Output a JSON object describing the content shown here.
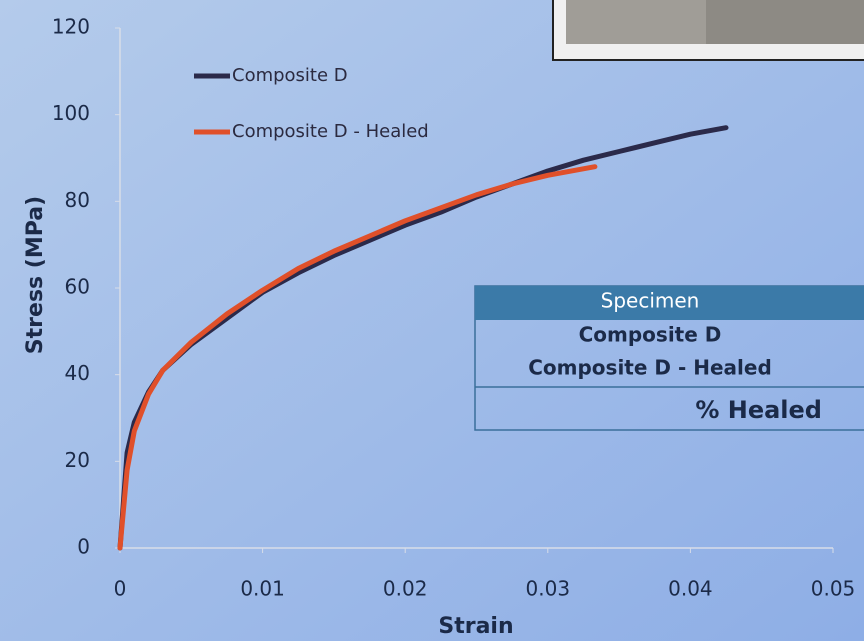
{
  "chart_data": {
    "type": "line",
    "xlabel": "Strain",
    "ylabel": "Stress (MPa)",
    "xlim": [
      0,
      0.05
    ],
    "xticks": [
      0,
      0.01,
      0.02,
      0.03,
      0.04,
      0.05
    ],
    "ylim": [
      0,
      120
    ],
    "yticks": [
      0,
      20,
      40,
      60,
      80,
      100,
      120
    ],
    "series": [
      {
        "name": "Composite D",
        "color": "#2b2a4a",
        "x": [
          0,
          0.0005,
          0.001,
          0.002,
          0.003,
          0.005,
          0.0075,
          0.01,
          0.0125,
          0.015,
          0.0175,
          0.02,
          0.0225,
          0.025,
          0.0275,
          0.03,
          0.0325,
          0.035,
          0.0375,
          0.04,
          0.0425
        ],
        "values": [
          0,
          22,
          29,
          36,
          41,
          47,
          53,
          59,
          63.5,
          67.5,
          71,
          74.5,
          77.5,
          81,
          84,
          87,
          89.5,
          91.5,
          93.5,
          95.5,
          97
        ]
      },
      {
        "name": "Composite D - Healed",
        "color": "#e0502a",
        "x": [
          0,
          0.0005,
          0.001,
          0.002,
          0.003,
          0.005,
          0.0075,
          0.01,
          0.0125,
          0.015,
          0.0175,
          0.02,
          0.0225,
          0.025,
          0.0275,
          0.03,
          0.0333
        ],
        "values": [
          0,
          18,
          27,
          35.5,
          41,
          47.5,
          54,
          59.5,
          64.5,
          68.5,
          72,
          75.5,
          78.5,
          81.5,
          84,
          86,
          88
        ]
      }
    ]
  },
  "table": {
    "header": "Specimen",
    "rows": [
      "Composite D",
      "Composite D - Healed"
    ],
    "footer": "% Healed"
  }
}
